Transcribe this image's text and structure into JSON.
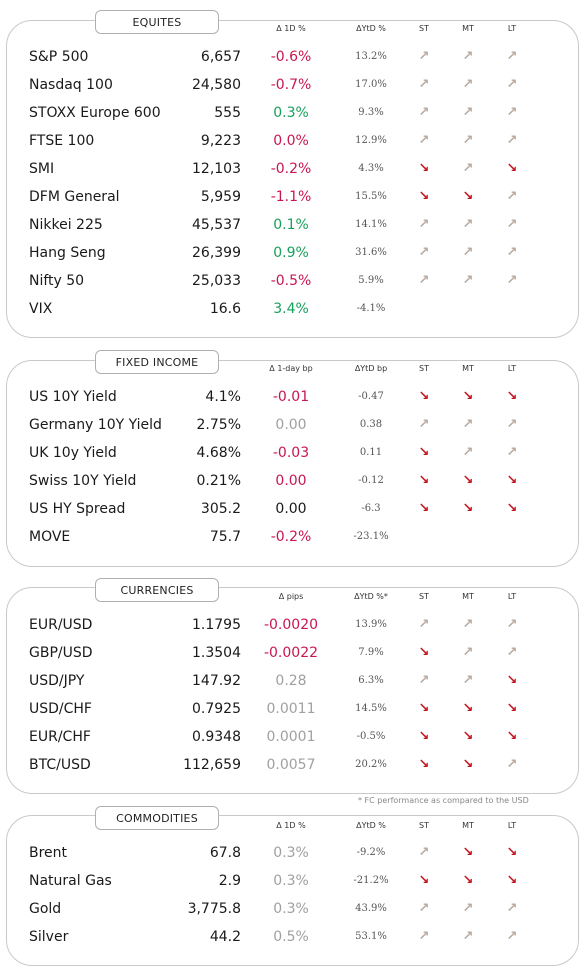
{
  "sections": [
    {
      "id": "equities",
      "title": "EQUITES",
      "headers": {
        "chg": "Δ 1D %",
        "ytd": "ΔYtD %",
        "st": "ST",
        "mt": "MT",
        "lt": "LT"
      },
      "rows": [
        {
          "name": "S&P 500",
          "value": "6,657",
          "chg": "-0.6%",
          "chg_color": "red",
          "ytd": "13.2%",
          "st": "up",
          "mt": "up",
          "lt": "up"
        },
        {
          "name": "Nasdaq 100",
          "value": "24,580",
          "chg": "-0.7%",
          "chg_color": "red",
          "ytd": "17.0%",
          "st": "up",
          "mt": "up",
          "lt": "up"
        },
        {
          "name": "STOXX Europe 600",
          "value": "555",
          "chg": "0.3%",
          "chg_color": "green",
          "ytd": "9.3%",
          "st": "up",
          "mt": "up",
          "lt": "up"
        },
        {
          "name": "FTSE 100",
          "value": "9,223",
          "chg": "0.0%",
          "chg_color": "red",
          "ytd": "12.9%",
          "st": "up",
          "mt": "up",
          "lt": "up"
        },
        {
          "name": "SMI",
          "value": "12,103",
          "chg": "-0.2%",
          "chg_color": "red",
          "ytd": "4.3%",
          "st": "down",
          "mt": "up",
          "lt": "down"
        },
        {
          "name": "DFM General",
          "value": "5,959",
          "chg": "-1.1%",
          "chg_color": "red",
          "ytd": "15.5%",
          "st": "down",
          "mt": "down",
          "lt": "up"
        },
        {
          "name": "Nikkei 225",
          "value": "45,537",
          "chg": "0.1%",
          "chg_color": "green",
          "ytd": "14.1%",
          "st": "up",
          "mt": "up",
          "lt": "up"
        },
        {
          "name": "Hang Seng",
          "value": "26,399",
          "chg": "0.9%",
          "chg_color": "green",
          "ytd": "31.6%",
          "st": "up",
          "mt": "up",
          "lt": "up"
        },
        {
          "name": "Nifty  50",
          "value": "25,033",
          "chg": "-0.5%",
          "chg_color": "red",
          "ytd": "5.9%",
          "st": "up",
          "mt": "up",
          "lt": "up"
        },
        {
          "name": "VIX",
          "value": "16.6",
          "chg": "3.4%",
          "chg_color": "green",
          "ytd": "-4.1%",
          "st": "",
          "mt": "",
          "lt": ""
        }
      ]
    },
    {
      "id": "fixed-income",
      "title": "FIXED INCOME",
      "headers": {
        "chg": "Δ 1-day bp",
        "ytd": "ΔYtD bp",
        "st": "ST",
        "mt": "MT",
        "lt": "LT"
      },
      "rows": [
        {
          "name": "US 10Y Yield",
          "value": "4.1%",
          "chg": "-0.01",
          "chg_color": "red",
          "ytd": "-0.47",
          "st": "down",
          "mt": "down",
          "lt": "down"
        },
        {
          "name": "Germany 10Y Yield",
          "value": "2.75%",
          "chg": "0.00",
          "chg_color": "gray",
          "ytd": "0.38",
          "st": "up",
          "mt": "up",
          "lt": "up"
        },
        {
          "name": "UK 10y Yield",
          "value": "4.68%",
          "chg": "-0.03",
          "chg_color": "red",
          "ytd": "0.11",
          "st": "down",
          "mt": "up",
          "lt": "up"
        },
        {
          "name": "Swiss 10Y Yield",
          "value": "0.21%",
          "chg": "0.00",
          "chg_color": "red",
          "ytd": "-0.12",
          "st": "down",
          "mt": "down",
          "lt": "down"
        },
        {
          "name": "US HY Spread",
          "value": "305.2",
          "chg": "0.00",
          "chg_color": "black",
          "ytd": "-6.3",
          "st": "down",
          "mt": "down",
          "lt": "down"
        },
        {
          "name": "MOVE",
          "value": "75.7",
          "chg": "-0.2%",
          "chg_color": "red",
          "ytd": "-23.1%",
          "st": "",
          "mt": "",
          "lt": ""
        }
      ]
    },
    {
      "id": "currencies",
      "title": "CURRENCIES",
      "headers": {
        "chg": "Δ pips",
        "ytd": "ΔYtD %*",
        "st": "ST",
        "mt": "MT",
        "lt": "LT"
      },
      "rows": [
        {
          "name": "EUR/USD",
          "value": "1.1795",
          "chg": "-0.0020",
          "chg_color": "red",
          "ytd": "13.9%",
          "st": "up",
          "mt": "up",
          "lt": "up"
        },
        {
          "name": "GBP/USD",
          "value": "1.3504",
          "chg": "-0.0022",
          "chg_color": "red",
          "ytd": "7.9%",
          "st": "down",
          "mt": "up",
          "lt": "up"
        },
        {
          "name": "USD/JPY",
          "value": "147.92",
          "chg": "0.28",
          "chg_color": "gray",
          "ytd": "6.3%",
          "st": "up",
          "mt": "up",
          "lt": "down"
        },
        {
          "name": "USD/CHF",
          "value": "0.7925",
          "chg": "0.0011",
          "chg_color": "gray",
          "ytd": "14.5%",
          "st": "down",
          "mt": "down",
          "lt": "down"
        },
        {
          "name": "EUR/CHF",
          "value": "0.9348",
          "chg": "0.0001",
          "chg_color": "gray",
          "ytd": "-0.5%",
          "st": "down",
          "mt": "down",
          "lt": "down"
        },
        {
          "name": "BTC/USD",
          "value": "112,659",
          "chg": "0.0057",
          "chg_color": "gray",
          "ytd": "20.2%",
          "st": "down",
          "mt": "down",
          "lt": "up"
        }
      ],
      "footnote": "* FC performance as compared to the USD"
    },
    {
      "id": "commodities",
      "title": "COMMODITIES",
      "headers": {
        "chg": "Δ 1D %",
        "ytd": "ΔYtD %",
        "st": "ST",
        "mt": "MT",
        "lt": "LT"
      },
      "rows": [
        {
          "name": "Brent",
          "value": "67.8",
          "chg": "0.3%",
          "chg_color": "gray",
          "ytd": "-9.2%",
          "st": "up",
          "mt": "down",
          "lt": "down"
        },
        {
          "name": "Natural Gas",
          "value": "2.9",
          "chg": "0.3%",
          "chg_color": "gray",
          "ytd": "-21.2%",
          "st": "down",
          "mt": "down",
          "lt": "down"
        },
        {
          "name": "Gold",
          "value": "3,775.8",
          "chg": "0.3%",
          "chg_color": "gray",
          "ytd": "43.9%",
          "st": "up",
          "mt": "up",
          "lt": "up"
        },
        {
          "name": "Silver",
          "value": "44.2",
          "chg": "0.5%",
          "chg_color": "gray",
          "ytd": "53.1%",
          "st": "up",
          "mt": "up",
          "lt": "up"
        }
      ]
    }
  ],
  "colors": {
    "red": "#c8174f",
    "green": "#17a05a",
    "gray": "#a0a0a0",
    "arrow_up": "#b9a99d",
    "arrow_down": "#c3141c"
  }
}
